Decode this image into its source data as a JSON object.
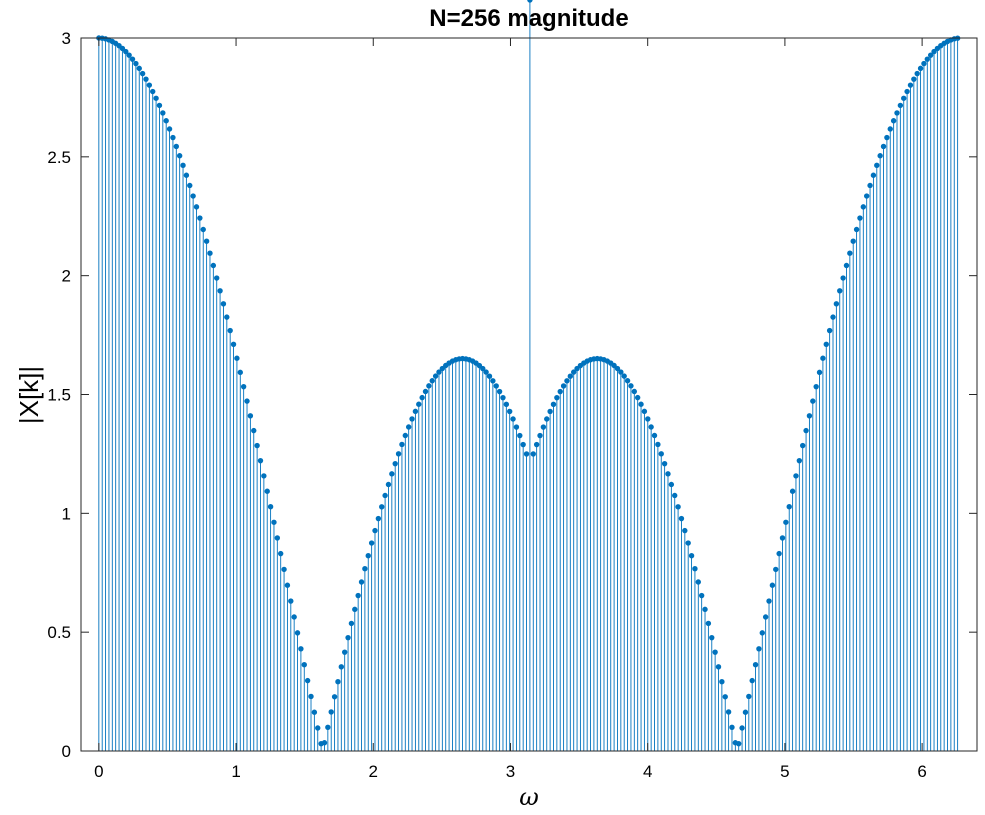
{
  "chart_data": {
    "type": "stem",
    "title": "N=256 magnitude",
    "xlabel": "ω",
    "ylabel": "|X[k]|",
    "xlim": [
      -0.13,
      6.4
    ],
    "ylim": [
      0,
      3
    ],
    "xticks": [
      0,
      1,
      2,
      3,
      4,
      5,
      6
    ],
    "xtick_labels": [
      "0",
      "1",
      "2",
      "3",
      "4",
      "5",
      "6"
    ],
    "yticks": [
      0,
      0.5,
      1,
      1.5,
      2,
      2.5,
      3
    ],
    "ytick_labels": [
      "0",
      "0.5",
      "1",
      "1.5",
      "2",
      "2.5",
      "3"
    ],
    "grid": false,
    "series_color": "#0072BD",
    "series": [
      {
        "N": 256,
        "x_start": 0,
        "x_step": 0.024544,
        "count": 256,
        "y": [
          3.0,
          2.9991,
          2.9964,
          2.9919,
          2.9856,
          2.9775,
          2.9677,
          2.9561,
          2.9428,
          2.9277,
          2.9109,
          2.8924,
          2.8722,
          2.8503,
          2.8268,
          2.8016,
          2.7748,
          2.7464,
          2.7164,
          2.6848,
          2.6518,
          2.6172,
          2.5811,
          2.5436,
          2.5046,
          2.4643,
          2.4225,
          2.3795,
          2.3351,
          2.2894,
          2.2425,
          2.1943,
          2.145,
          2.0945,
          2.0428,
          1.9901,
          1.9363,
          1.8815,
          1.8256,
          1.7689,
          1.7112,
          1.6526,
          1.5932,
          1.533,
          1.4721,
          1.4104,
          1.3481,
          1.2851,
          1.2216,
          1.1575,
          1.0929,
          1.0279,
          0.9624,
          0.8966,
          0.8305,
          0.7641,
          0.6975,
          0.6308,
          0.5639,
          0.497,
          0.43,
          0.3631,
          0.2962,
          0.2295,
          0.1631,
          0.0968,
          0.0309,
          0.0347,
          0.0998,
          0.1643,
          0.2282,
          0.2915,
          0.3541,
          0.4159,
          0.4768,
          0.5369,
          0.596,
          0.6541,
          0.7111,
          0.767,
          0.8217,
          0.8751,
          0.9273,
          0.978,
          1.0273,
          1.0751,
          1.1214,
          1.1661,
          1.209,
          1.2503,
          1.2898,
          1.3275,
          1.3633,
          1.3972,
          1.4291,
          1.459,
          1.4869,
          1.5127,
          1.5364,
          1.5579,
          1.5773,
          1.5944,
          1.6093,
          1.622,
          1.6324,
          1.6405,
          1.6463,
          1.6498,
          1.6509,
          1.6497,
          1.6462,
          1.6404,
          1.6322,
          1.6218,
          1.6091,
          1.5942,
          1.577,
          1.5576,
          1.5361,
          1.5124,
          1.4866,
          1.4587,
          1.4288,
          1.3969,
          1.363,
          1.3272,
          1.2895,
          1.25
        ],
        "note_symmetry": "second half mirrors first half about ω = π"
      }
    ]
  }
}
